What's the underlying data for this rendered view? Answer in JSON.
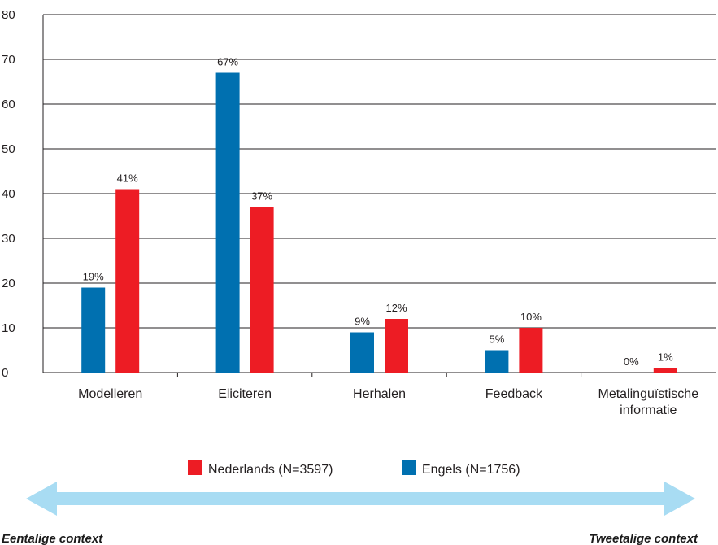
{
  "chart_data": {
    "type": "bar",
    "categories": [
      [
        "Modelleren"
      ],
      [
        "Eliciteren"
      ],
      [
        "Herhalen"
      ],
      [
        "Feedback"
      ],
      [
        "Metalinguïstische",
        "informatie"
      ]
    ],
    "series": [
      {
        "name": "Engels (N=1756)",
        "values": [
          19,
          67,
          9,
          5,
          0
        ],
        "labels": [
          "19%",
          "67%",
          "9%",
          "5%",
          "0%"
        ],
        "color": "#0070b0"
      },
      {
        "name": "Nederlands (N=3597)",
        "values": [
          41,
          37,
          12,
          10,
          1
        ],
        "labels": [
          "41%",
          "37%",
          "12%",
          "10%",
          "1%"
        ],
        "color": "#ed1c24"
      }
    ],
    "ylim": [
      0,
      80
    ],
    "yticks": [
      "0",
      "10",
      "20",
      "30",
      "40",
      "50",
      "60",
      "70",
      "80"
    ],
    "grid": true,
    "legend_placement": "bottom-center",
    "legend_order": [
      "Nederlands (N=3597)",
      "Engels (N=1756)"
    ]
  },
  "context_arrow": {
    "left_label": "Eentalige context",
    "right_label": "Tweetalige context",
    "color": "#a8dcf3"
  }
}
